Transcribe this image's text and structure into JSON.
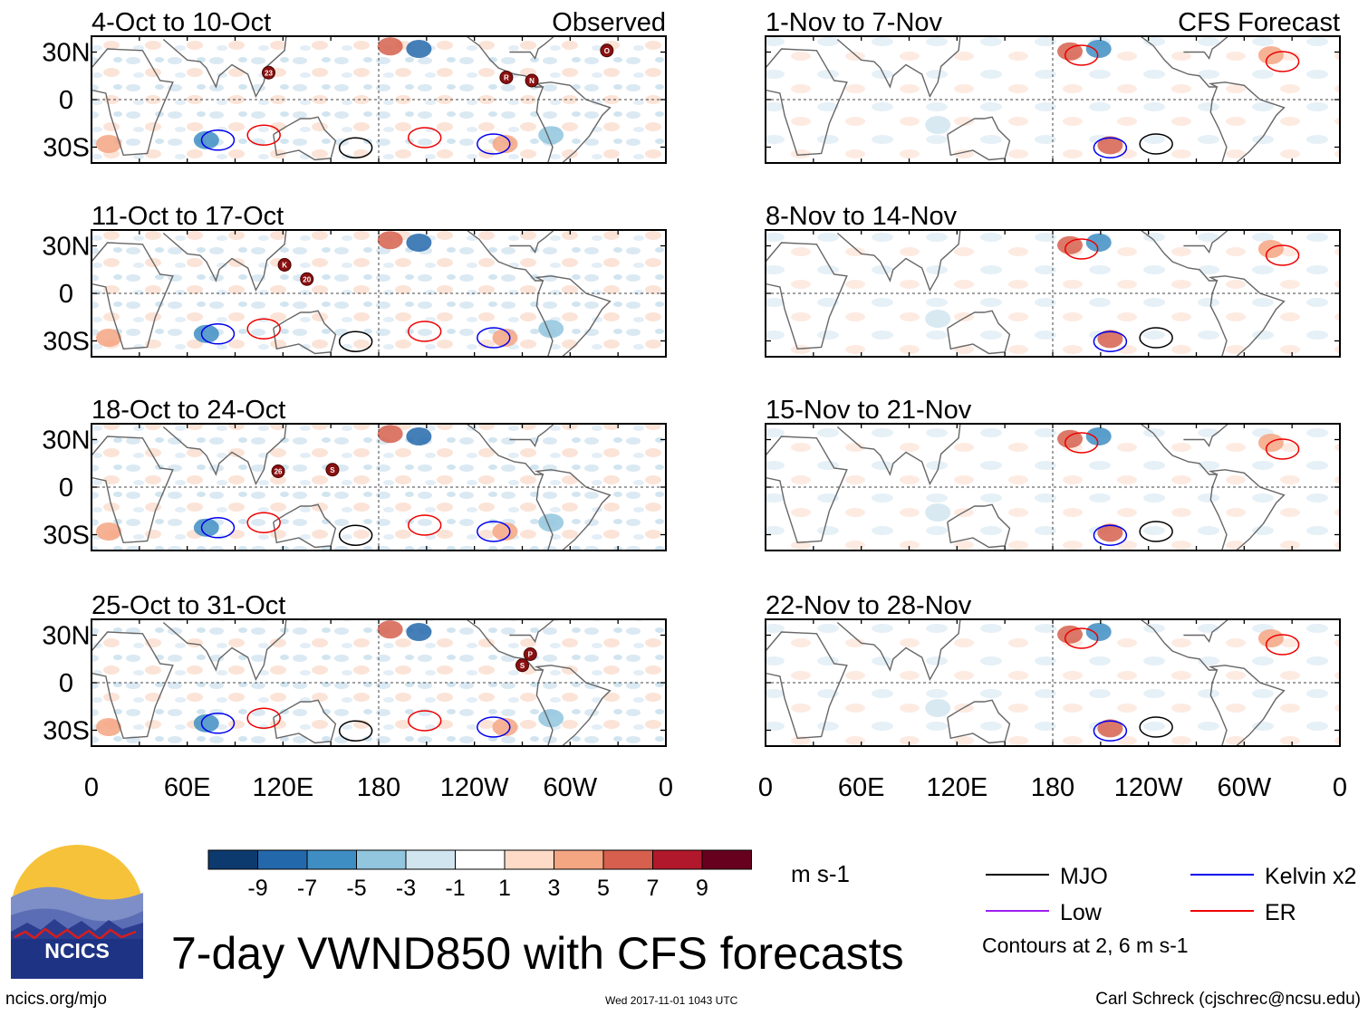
{
  "figure": {
    "title": "7-day VWND850 with CFS forecasts",
    "footer_left": "ncics.org/mjo",
    "footer_center": "Wed 2017-11-01 1043 UTC",
    "footer_right": "Carl Schreck (cjschrec@ncsu.edu)",
    "logo_text": "NCICS"
  },
  "columns": {
    "observed_label": "Observed",
    "forecast_label": "CFS Forecast"
  },
  "chart_data": {
    "type": "heatmap",
    "variable": "850-hPa meridional wind anomaly (7-day means)",
    "lat_range": [
      -40,
      40
    ],
    "lon_range": [
      0,
      360
    ],
    "y_ticks": [
      "30N",
      "0",
      "30S"
    ],
    "x_ticks": [
      "0",
      "60E",
      "120E",
      "180",
      "120W",
      "60W",
      "0"
    ],
    "panels": [
      {
        "title": "4-Oct to 10-Oct",
        "kind": "observed",
        "storms": [
          {
            "label": "23",
            "lon": 111,
            "lat": 17
          },
          {
            "label": "R",
            "lon": 260,
            "lat": 14
          },
          {
            "label": "N",
            "lon": 276,
            "lat": 12
          },
          {
            "label": "O",
            "lon": 323,
            "lat": 31
          }
        ]
      },
      {
        "title": "1-Nov to 7-Nov",
        "kind": "forecast",
        "storms": []
      },
      {
        "title": "11-Oct to 17-Oct",
        "kind": "observed",
        "storms": [
          {
            "label": "K",
            "lon": 121,
            "lat": 18
          },
          {
            "label": "20",
            "lon": 135,
            "lat": 9
          }
        ]
      },
      {
        "title": "8-Nov to 14-Nov",
        "kind": "forecast",
        "storms": []
      },
      {
        "title": "18-Oct to 24-Oct",
        "kind": "observed",
        "storms": [
          {
            "label": "26",
            "lon": 117,
            "lat": 10
          },
          {
            "label": "S",
            "lon": 151,
            "lat": 11
          }
        ]
      },
      {
        "title": "15-Nov to 21-Nov",
        "kind": "forecast",
        "storms": []
      },
      {
        "title": "25-Oct to 31-Oct",
        "kind": "observed",
        "storms": [
          {
            "label": "P",
            "lon": 275,
            "lat": 18
          },
          {
            "label": "S",
            "lon": 270,
            "lat": 11
          }
        ]
      },
      {
        "title": "22-Nov to 28-Nov",
        "kind": "forecast",
        "storms": []
      }
    ],
    "colorbar": {
      "labels": [
        "-9",
        "-7",
        "-5",
        "-3",
        "-1",
        "1",
        "3",
        "5",
        "7",
        "9"
      ],
      "colors": [
        "#0d3a6e",
        "#2468ac",
        "#3f8ec3",
        "#92c5de",
        "#d1e5f0",
        "#ffffff",
        "#fddbc7",
        "#f4a582",
        "#d6604d",
        "#b2182b",
        "#67001f"
      ],
      "units": "m s-1"
    },
    "legend": [
      {
        "name": "MJO",
        "color": "#000000"
      },
      {
        "name": "Kelvin x2",
        "color": "#0000ee"
      },
      {
        "name": "Low",
        "color": "#a020f0"
      },
      {
        "name": "ER",
        "color": "#ee0000"
      }
    ],
    "contour_note": "Contours at 2, 6 m s-1"
  }
}
